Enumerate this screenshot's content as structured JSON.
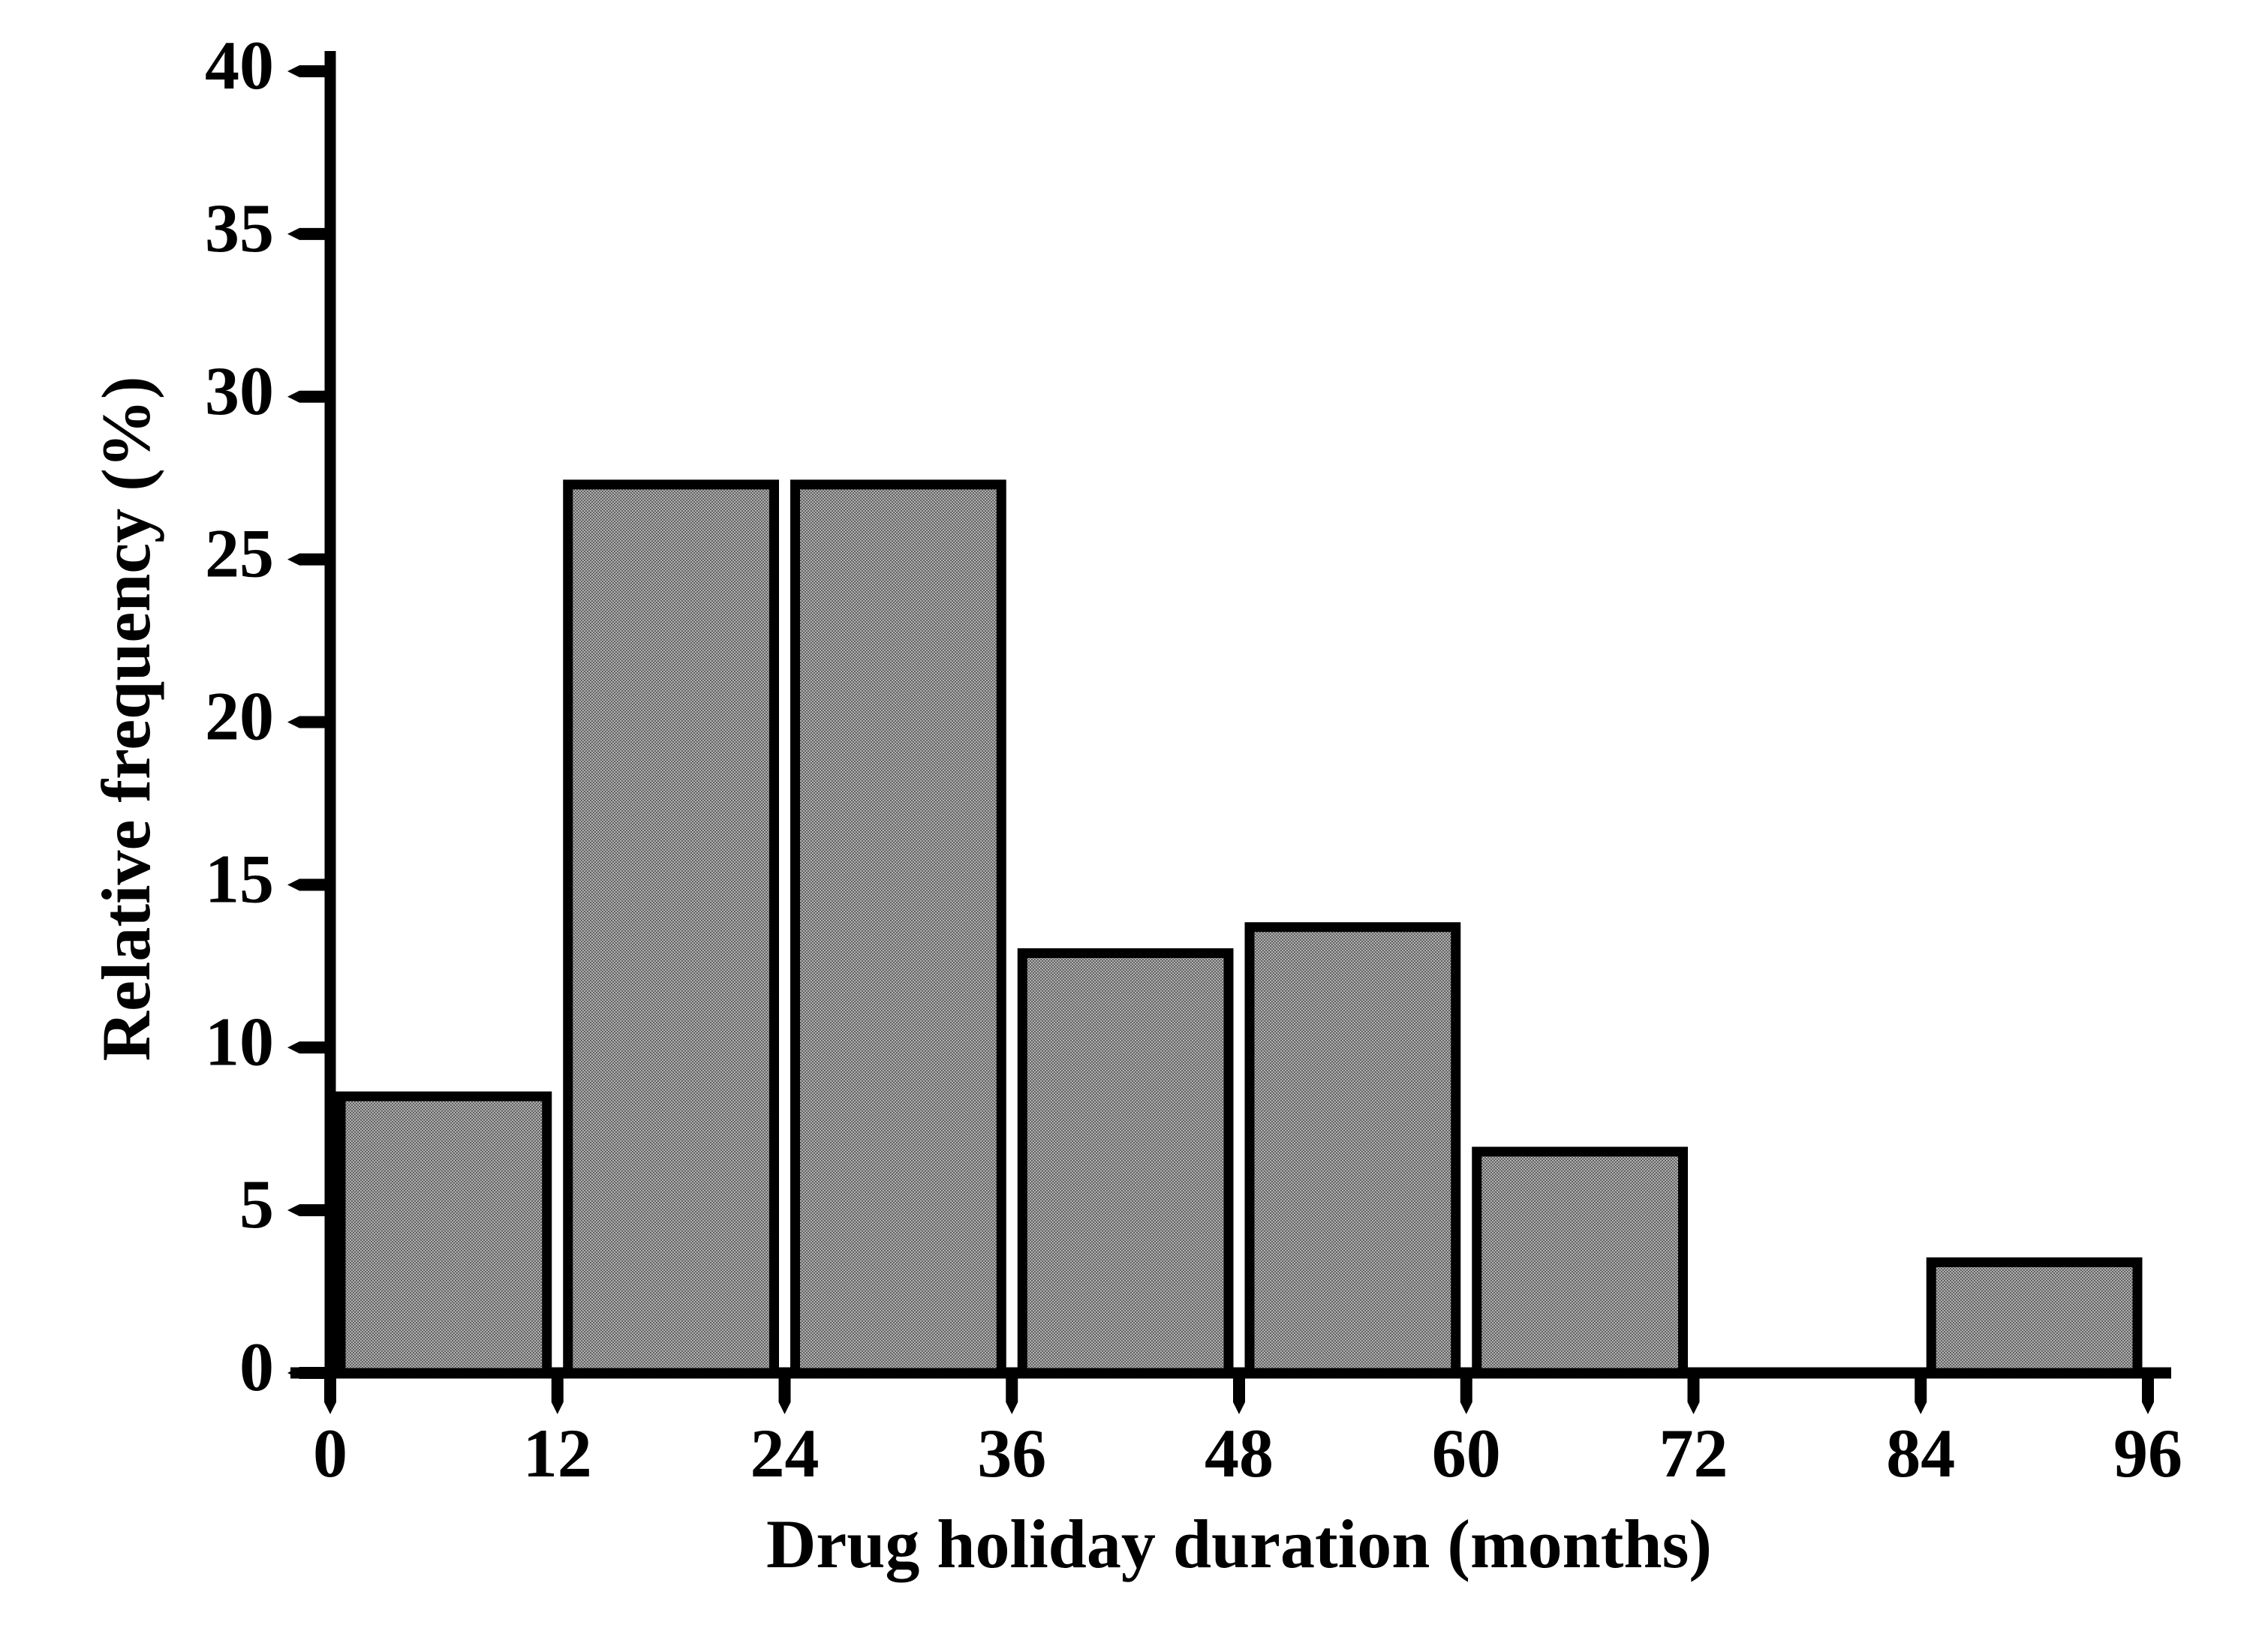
{
  "figure": {
    "background": "#ffffff"
  },
  "chart_data": {
    "type": "bar",
    "subtype": "histogram",
    "title": "",
    "xlabel": "Drug holiday duration (months)",
    "ylabel": "Relative frequency (%)",
    "bin_edges": [
      0,
      12,
      24,
      36,
      48,
      60,
      72,
      84,
      96
    ],
    "categories": [
      "0-12",
      "12-24",
      "24-36",
      "36-48",
      "48-60",
      "60-72",
      "72-84",
      "84-96"
    ],
    "values": [
      8.5,
      27.3,
      27.3,
      12.9,
      13.7,
      6.8,
      0,
      3.4
    ],
    "x_ticks": [
      "0",
      "12",
      "24",
      "36",
      "48",
      "60",
      "72",
      "84",
      "96"
    ],
    "x_tick_values": [
      0,
      12,
      24,
      36,
      48,
      60,
      72,
      84,
      96
    ],
    "y_ticks": [
      "0",
      "5",
      "10",
      "15",
      "20",
      "25",
      "30",
      "35",
      "40"
    ],
    "y_tick_values": [
      0,
      5,
      10,
      15,
      20,
      25,
      30,
      35,
      40
    ],
    "xlim": [
      0,
      96
    ],
    "ylim": [
      0,
      40
    ],
    "grid": false,
    "legend": null,
    "bar_fill_base": "#b0b0b0",
    "bar_fill_dot": "#636363",
    "bar_border_color": "#000000",
    "axis_color": "#000000",
    "text_color": "#000000"
  }
}
